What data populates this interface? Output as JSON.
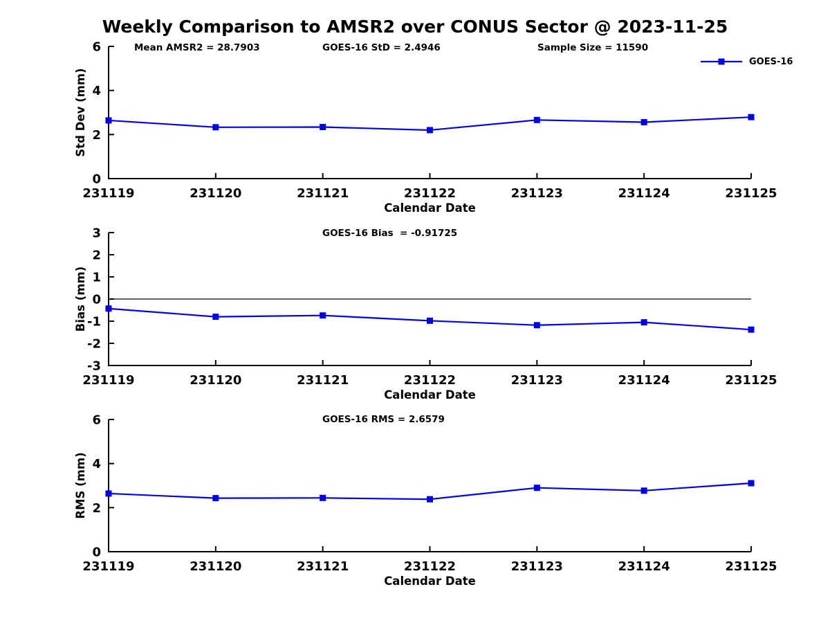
{
  "title": "Weekly Comparison to AMSR2 over CONUS Sector @ 2023-11-25",
  "legend": {
    "label": "GOES-16",
    "color": "#0000EE"
  },
  "colors": {
    "series": "#0000EE",
    "axis": "#000000",
    "background": "#ffffff"
  },
  "chart_data": [
    {
      "type": "line",
      "name": "std-dev",
      "annotations": [
        {
          "text": "Mean AMSR2 = 28.7903"
        },
        {
          "text": "GOES-16 StD = 2.4946"
        },
        {
          "text": "Sample Size = 11590"
        }
      ],
      "legend": "GOES-16",
      "xlabel": "Calendar Date",
      "ylabel": "Std Dev (mm)",
      "categories": [
        "231119",
        "231120",
        "231121",
        "231122",
        "231123",
        "231124",
        "231125"
      ],
      "values": [
        2.64,
        2.33,
        2.34,
        2.2,
        2.66,
        2.56,
        2.79
      ],
      "ylim": [
        0,
        6
      ],
      "yticks": [
        0,
        2,
        4,
        6
      ],
      "zero_line": false,
      "grid": false,
      "legend_position": "top-right"
    },
    {
      "type": "line",
      "name": "bias",
      "annotation": "GOES-16 Bias  = -0.91725",
      "xlabel": "Calendar Date",
      "ylabel": "Bias (mm)",
      "categories": [
        "231119",
        "231120",
        "231121",
        "231122",
        "231123",
        "231124",
        "231125"
      ],
      "values": [
        -0.43,
        -0.8,
        -0.74,
        -0.98,
        -1.18,
        -1.05,
        -1.38
      ],
      "ylim": [
        -3,
        3
      ],
      "yticks": [
        -3,
        -2,
        -1,
        0,
        1,
        2,
        3
      ],
      "zero_line": true,
      "grid": false
    },
    {
      "type": "line",
      "name": "rms",
      "annotation": "GOES-16 RMS = 2.6579",
      "xlabel": "Calendar Date",
      "ylabel": "RMS (mm)",
      "categories": [
        "231119",
        "231120",
        "231121",
        "231122",
        "231123",
        "231124",
        "231125"
      ],
      "values": [
        2.64,
        2.43,
        2.44,
        2.38,
        2.9,
        2.77,
        3.11
      ],
      "ylim": [
        0,
        6
      ],
      "yticks": [
        0,
        2,
        4,
        6
      ],
      "zero_line": false,
      "grid": false
    }
  ]
}
